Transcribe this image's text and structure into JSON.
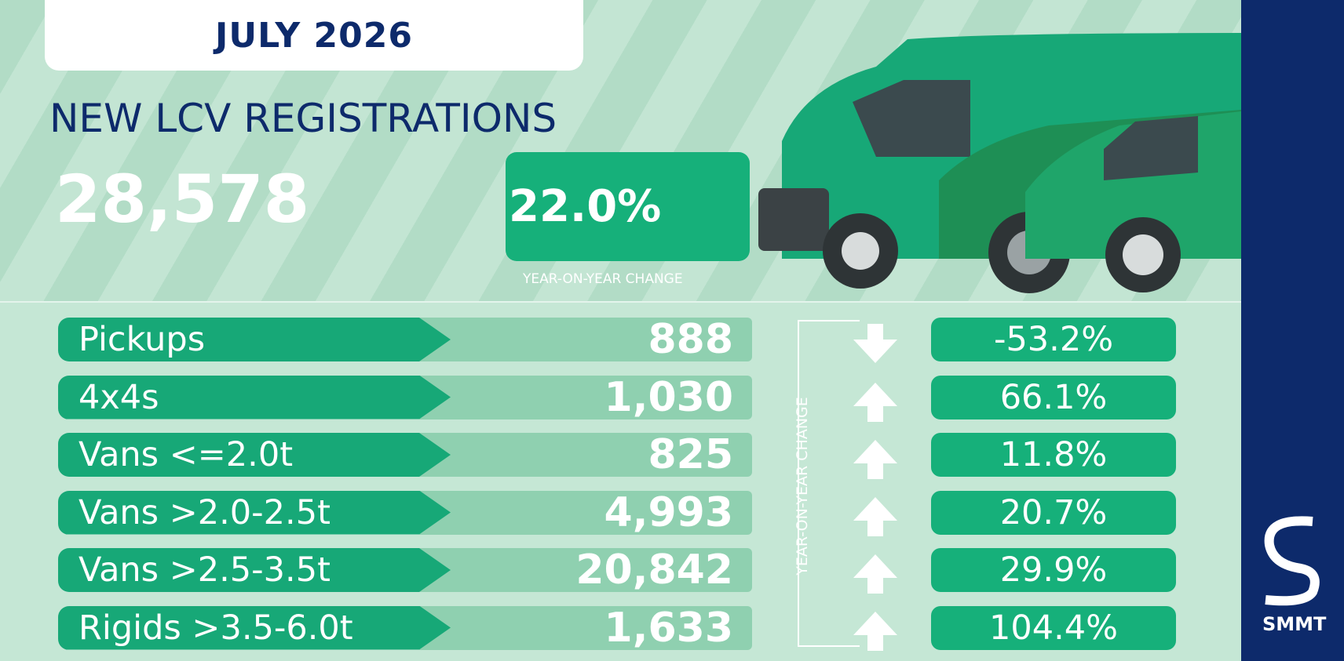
{
  "header": {
    "date": "JULY 2026",
    "title": "NEW LCV REGISTRATIONS",
    "total": "28,578",
    "change": "22.0%",
    "change_label": "YEAR-ON-YEAR CHANGE"
  },
  "table": {
    "side_label": "YEAR-ON-YEAR CHANGE",
    "rows": [
      [
        "Pickups",
        "888",
        "-53.2%"
      ],
      [
        "4x4s",
        "1,030",
        "66.1%"
      ],
      [
        "Vans <=2.0t",
        "825",
        "11.8%"
      ],
      [
        "Vans >2.0-2.5t",
        "4,993",
        "20.7%"
      ],
      [
        "Vans >2.5-3.5t",
        "20,842",
        "29.9%"
      ],
      [
        "Rigids >3.5-6.0t",
        "1,633",
        "104.4%"
      ]
    ]
  },
  "logo": "SMMT"
}
